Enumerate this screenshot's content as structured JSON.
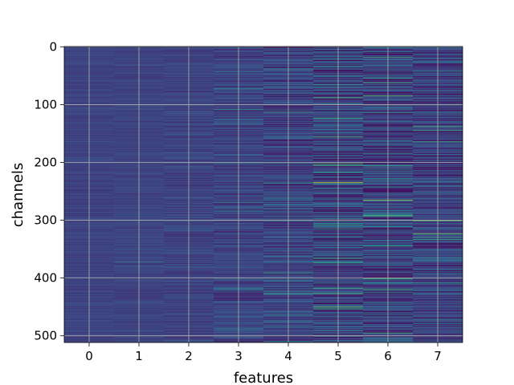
{
  "chart_data": {
    "type": "heatmap",
    "xlabel": "features",
    "ylabel": "channels",
    "x_categories": [
      "0",
      "1",
      "2",
      "3",
      "4",
      "5",
      "6",
      "7"
    ],
    "xlim": [
      -0.5,
      7.5
    ],
    "ylim": [
      511.5,
      -0.5
    ],
    "y_ticks": [
      0,
      100,
      200,
      300,
      400,
      500
    ],
    "y_tick_labels": [
      "0",
      "100",
      "200",
      "300",
      "400",
      "500"
    ],
    "rows": 512,
    "grid": true,
    "colormap": "viridis",
    "column_variability": [
      0.06,
      0.07,
      0.1,
      0.16,
      0.22,
      0.3,
      0.3,
      0.26
    ],
    "highlights": [
      {
        "feature": 5,
        "channel": 235,
        "value": 0.95
      },
      {
        "feature": 6,
        "channel": 265,
        "value": 0.85
      },
      {
        "feature": 7,
        "channel": 323,
        "value": 0.8
      },
      {
        "feature": 5,
        "channel": 88,
        "value": 0.7
      },
      {
        "feature": 6,
        "channel": 100,
        "value": 0.6
      },
      {
        "feature": 7,
        "channel": 138,
        "value": 0.65
      },
      {
        "feature": 4,
        "channel": 113,
        "value": 0.6
      },
      {
        "feature": 3,
        "channel": 108,
        "value": 0.55
      },
      {
        "feature": 5,
        "channel": 452,
        "value": 0.6
      },
      {
        "feature": 6,
        "channel": 345,
        "value": 0.55
      },
      {
        "feature": 4,
        "channel": 262,
        "value": 0.5
      },
      {
        "feature": 1,
        "channel": 372,
        "value": 0.45
      }
    ]
  }
}
